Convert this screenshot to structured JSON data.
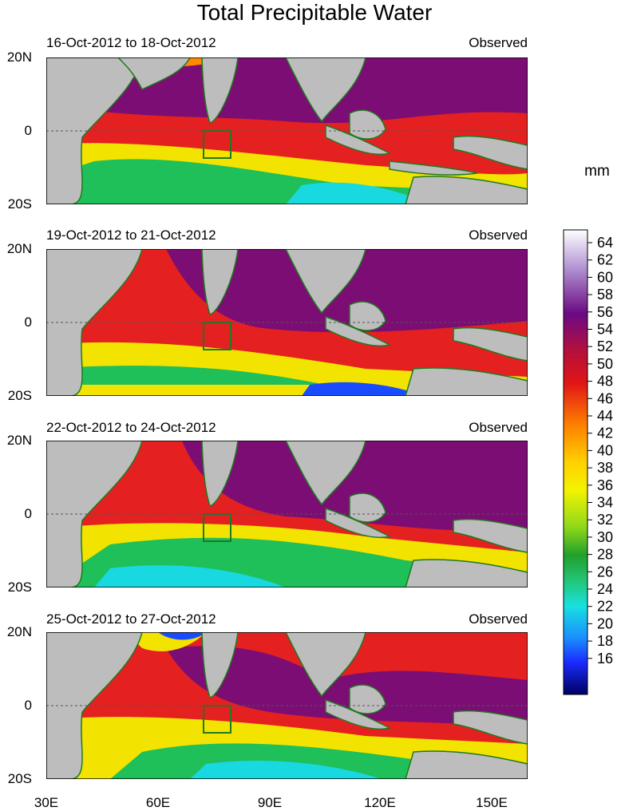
{
  "title": "Total Precipitable Water",
  "units": "mm",
  "panels": [
    {
      "date_range": "16-Oct-2012 to 18-Oct-2012",
      "status": "Observed"
    },
    {
      "date_range": "19-Oct-2012 to 21-Oct-2012",
      "status": "Observed"
    },
    {
      "date_range": "22-Oct-2012 to 24-Oct-2012",
      "status": "Observed"
    },
    {
      "date_range": "25-Oct-2012 to 27-Oct-2012",
      "status": "Observed"
    }
  ],
  "lat_labels": [
    "20N",
    "0",
    "20S"
  ],
  "lon_labels": [
    "30E",
    "60E",
    "90E",
    "120E",
    "150E"
  ],
  "colorbar": {
    "labels": [
      "64",
      "62",
      "60",
      "58",
      "56",
      "54",
      "52",
      "50",
      "48",
      "46",
      "44",
      "42",
      "40",
      "38",
      "36",
      "34",
      "32",
      "30",
      "28",
      "26",
      "24",
      "22",
      "20",
      "18",
      "16"
    ],
    "colors": {
      "purple": "#6a0a84",
      "red": "#e01616",
      "orange": "#ff8000",
      "yellow": "#f3f300",
      "green": "#22a02a",
      "cyan": "#18e0e0",
      "blue": "#1a4cff",
      "navy": "#000060",
      "land": "#bdbdbd",
      "coast": "#1f7a1f"
    }
  }
}
